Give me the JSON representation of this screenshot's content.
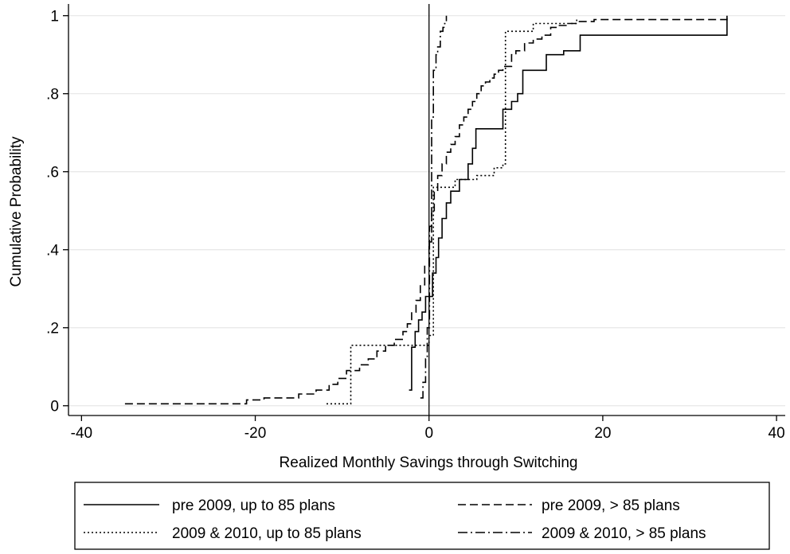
{
  "chart_data": {
    "type": "line",
    "title": "",
    "xlabel": "Realized Monthly Savings through Switching",
    "ylabel": "Cumulative Probability",
    "xlim": [
      -41.5,
      41
    ],
    "ylim": [
      -0.025,
      1.03
    ],
    "x_ticks": [
      -40,
      -20,
      0,
      20,
      40
    ],
    "x_tick_labels": [
      "-40",
      "-20",
      "0",
      "20",
      "40"
    ],
    "y_ticks": [
      0,
      0.2,
      0.4,
      0.6,
      0.8,
      1
    ],
    "y_tick_labels": [
      "0",
      ".2",
      ".4",
      ".6",
      ".8",
      "1"
    ],
    "grid": "horizontal",
    "reference_line_x": 0,
    "legend_position": "bottom",
    "series": [
      {
        "name": "pre 2009, up to 85 plans",
        "style": "solid",
        "step": true,
        "x": [
          -2.3,
          -2.0,
          -1.6,
          -1.2,
          -0.8,
          -0.4,
          0.4,
          0.8,
          1.1,
          1.5,
          2.0,
          2.5,
          3.5,
          4.5,
          5.0,
          5.4,
          8.5,
          9.5,
          10.2,
          10.8,
          13.5,
          15.5,
          17.4,
          34.3
        ],
        "y": [
          0.04,
          0.15,
          0.19,
          0.22,
          0.24,
          0.28,
          0.34,
          0.38,
          0.43,
          0.48,
          0.52,
          0.55,
          0.58,
          0.62,
          0.66,
          0.71,
          0.76,
          0.78,
          0.8,
          0.86,
          0.9,
          0.91,
          0.95,
          1.0
        ]
      },
      {
        "name": "pre 2009, > 85 plans",
        "style": "dash",
        "step": true,
        "x": [
          -35.0,
          -21.0,
          -19.0,
          -15.0,
          -13.0,
          -11.5,
          -10.5,
          -9.5,
          -8.0,
          -7.0,
          -6.0,
          -5.0,
          -4.0,
          -3.0,
          -2.5,
          -2.0,
          -1.5,
          -1.0,
          -0.5,
          0.0,
          0.3,
          0.6,
          1.0,
          1.5,
          2.0,
          2.5,
          3.0,
          3.5,
          4.0,
          4.5,
          5.0,
          5.5,
          6.0,
          6.5,
          7.0,
          7.5,
          8.0,
          8.5,
          9.5,
          10.0,
          11.0,
          12.0,
          13.0,
          14.0,
          15.0,
          16.0,
          17.0,
          19.0,
          23.0,
          34.3
        ],
        "y": [
          0.005,
          0.015,
          0.02,
          0.03,
          0.04,
          0.055,
          0.07,
          0.09,
          0.105,
          0.12,
          0.14,
          0.155,
          0.17,
          0.19,
          0.21,
          0.24,
          0.27,
          0.31,
          0.36,
          0.42,
          0.5,
          0.55,
          0.59,
          0.62,
          0.65,
          0.67,
          0.69,
          0.72,
          0.74,
          0.76,
          0.78,
          0.8,
          0.82,
          0.83,
          0.84,
          0.85,
          0.86,
          0.87,
          0.9,
          0.91,
          0.93,
          0.94,
          0.95,
          0.97,
          0.975,
          0.98,
          0.985,
          0.99,
          0.99,
          1.0
        ]
      },
      {
        "name": "2009 & 2010, up to 85 plans",
        "style": "dot",
        "step": true,
        "x": [
          -11.8,
          -9.0,
          0.0,
          0.5,
          3.0,
          5.5,
          7.5,
          8.5,
          8.8,
          12.0,
          17.0
        ],
        "y": [
          0.005,
          0.155,
          0.18,
          0.56,
          0.58,
          0.59,
          0.61,
          0.62,
          0.96,
          0.98,
          0.99
        ]
      },
      {
        "name": "2009 & 2010, > 85 plans",
        "style": "dashdot",
        "step": true,
        "x": [
          -1.0,
          -0.7,
          -0.4,
          -0.2,
          0.05,
          0.3,
          0.5,
          0.8,
          1.0,
          1.3,
          1.6,
          1.8,
          2.0
        ],
        "y": [
          0.02,
          0.06,
          0.12,
          0.2,
          0.46,
          0.74,
          0.86,
          0.9,
          0.92,
          0.96,
          0.97,
          0.98,
          1.0
        ]
      }
    ]
  }
}
